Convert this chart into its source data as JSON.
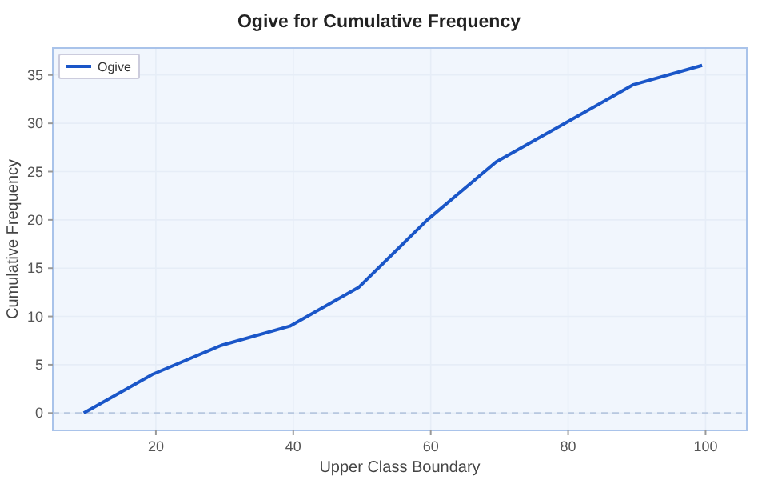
{
  "chart_data": {
    "type": "line",
    "title": "Ogive for Cumulative Frequency",
    "xlabel": "Upper Class Boundary",
    "ylabel": "Cumulative Frequency",
    "x": [
      9.5,
      19.5,
      29.5,
      39.5,
      49.5,
      59.5,
      69.5,
      79.5,
      89.5,
      99.5
    ],
    "series": [
      {
        "name": "Ogive",
        "color": "#1a56c8",
        "values": [
          0,
          4,
          7,
          9,
          13,
          20,
          26,
          30,
          34,
          36
        ]
      }
    ],
    "xlim": [
      5,
      106
    ],
    "xticks": [
      20,
      40,
      60,
      80,
      100
    ],
    "ylim": [
      -1.8,
      37.8
    ],
    "yticks": [
      0,
      5,
      10,
      15,
      20,
      25,
      30,
      35
    ],
    "grid": true,
    "legend": "top left",
    "marker": "none",
    "line_style": "solid",
    "ref_lines": [
      {
        "axis": "y",
        "value": 0,
        "color": "#b8c8e0",
        "line_style": "dashed"
      }
    ]
  }
}
